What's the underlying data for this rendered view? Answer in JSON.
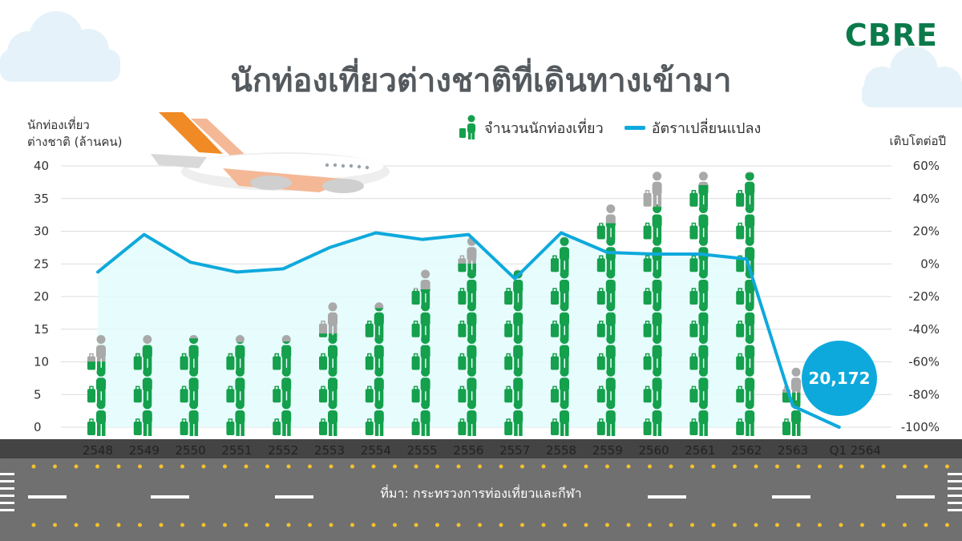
{
  "title": "นักท่องเที่ยวต่างชาติที่เดินทางเข้ามา",
  "logo": "CBRE",
  "source": "ที่มา: กระทรวงการท่องเที่ยวและกีฬา",
  "callout": "20,172",
  "colors": {
    "traveler_green": "#14a04c",
    "traveler_gray": "#a9a9a9",
    "line_blue": "#0ea9dc",
    "area_fill": "#e3fbfb",
    "title_gray": "#555a5e",
    "logo_green": "#0b7a4b",
    "runway": "#707070"
  },
  "icons": {
    "traveler": "person-with-suitcase-icon",
    "airplane": "airplane-icon",
    "cloud": "cloud-icon"
  },
  "chart_data": {
    "type": "bar",
    "title": "นักท่องเที่ยวต่างชาติที่เดินทางเข้ามา",
    "ylabel_left_line1": "นักท่องเที่ยว",
    "ylabel_left_line2": "ต่างชาติ (ล้านคน)",
    "ylabel_right": "เติบโตต่อปี",
    "legend": {
      "tourists": "จำนวนนักท่องเที่ยว",
      "growth": "อัตราเปลี่ยนแปลง"
    },
    "categories": [
      "2548",
      "2549",
      "2550",
      "2551",
      "2552",
      "2553",
      "2554",
      "2555",
      "2556",
      "2557",
      "2558",
      "2559",
      "2560",
      "2561",
      "2562",
      "2563",
      "Q1 2564"
    ],
    "ylim_left": [
      0,
      40
    ],
    "left_ticks": [
      "0",
      "5",
      "10",
      "15",
      "20",
      "25",
      "30",
      "35",
      "40"
    ],
    "ylim_right": [
      -100,
      60
    ],
    "right_ticks": [
      "-100%",
      "-80%",
      "-60%",
      "-40%",
      "-20%",
      "0%",
      "20%",
      "40%",
      "60%"
    ],
    "grid": true,
    "series": [
      {
        "name": "จำนวนนักท่องเที่ยว",
        "type": "icons",
        "values": [
          11.5,
          13.8,
          14.5,
          14.0,
          14.1,
          15.9,
          19.2,
          22.4,
          26.5,
          24.8,
          29.9,
          32.5,
          35.4,
          38.2,
          39.8,
          6.7,
          0.02
        ]
      },
      {
        "name": "อัตราเปลี่ยนแปลง",
        "type": "line",
        "values": [
          -5,
          18,
          1,
          -5,
          -3,
          10,
          19,
          15,
          18,
          -9,
          19,
          7,
          6,
          6,
          3,
          -87,
          -100
        ]
      }
    ]
  }
}
